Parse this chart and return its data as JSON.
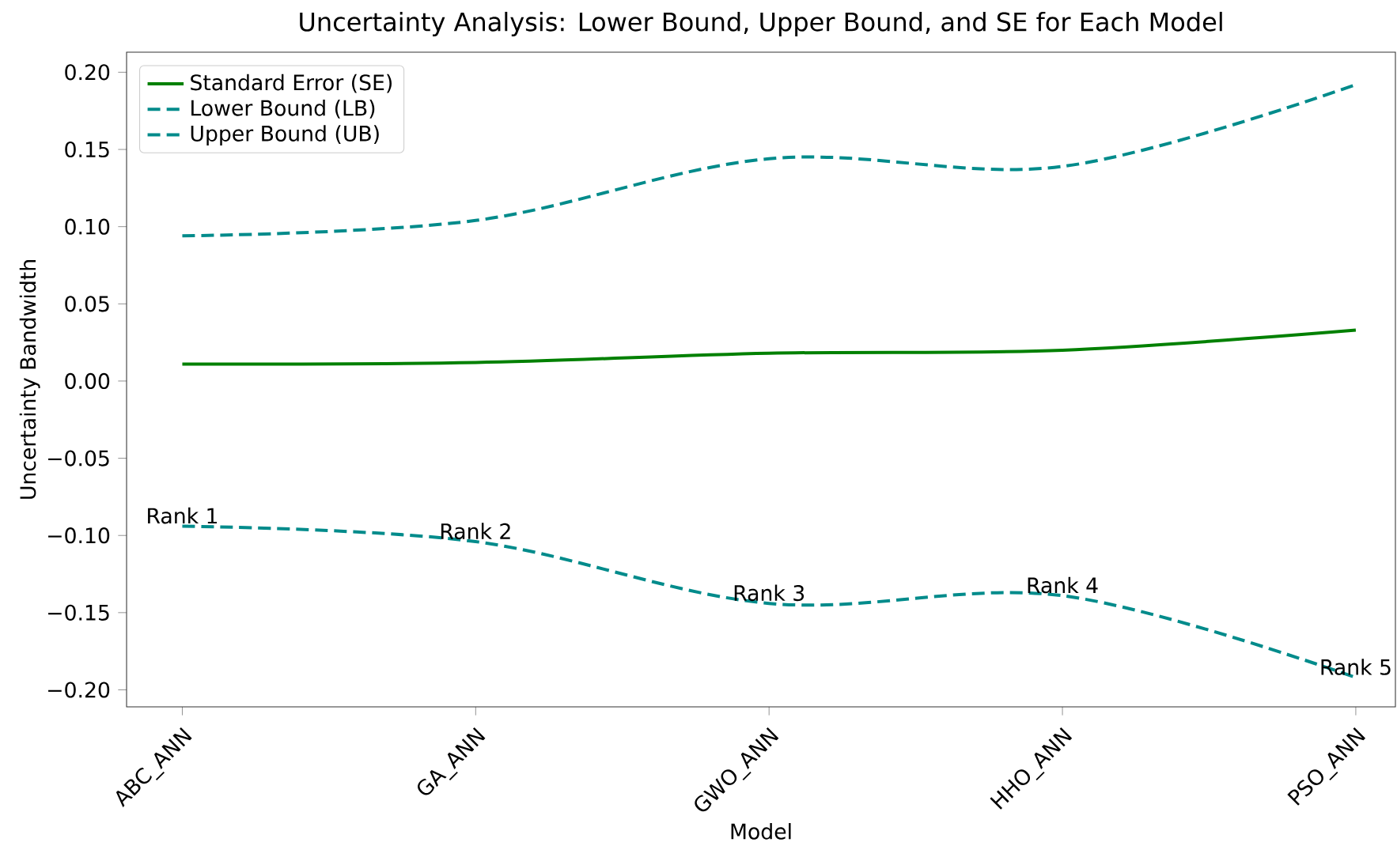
{
  "chart_data": {
    "type": "line",
    "title": "Uncertainty Analysis: Lower Bound, Upper Bound, and SE for Each Model",
    "xlabel": "Model",
    "ylabel": "Uncertainty Bandwidth",
    "categories": [
      "ABC_ANN",
      "GA_ANN",
      "GWO_ANN",
      "HHO_ANN",
      "PSO_ANN"
    ],
    "series": [
      {
        "name": "Standard Error (SE)",
        "color": "#008000",
        "line_style": "solid",
        "values": [
          0.011,
          0.012,
          0.018,
          0.02,
          0.033
        ]
      },
      {
        "name": "Lower Bound (LB)",
        "color": "#008b8b",
        "line_style": "dashed",
        "values": [
          -0.094,
          -0.104,
          -0.144,
          -0.139,
          -0.192
        ]
      },
      {
        "name": "Upper Bound (UB)",
        "color": "#008b8b",
        "line_style": "dashed",
        "values": [
          0.094,
          0.104,
          0.144,
          0.139,
          0.192
        ]
      }
    ],
    "ylim": [
      -0.211,
      0.213
    ],
    "yticks": [
      {
        "value": -0.2,
        "label": "−0.20"
      },
      {
        "value": -0.15,
        "label": "−0.15"
      },
      {
        "value": -0.1,
        "label": "−0.10"
      },
      {
        "value": -0.05,
        "label": "−0.05"
      },
      {
        "value": 0,
        "label": "0.00"
      },
      {
        "value": 0.05,
        "label": "0.05"
      },
      {
        "value": 0.1,
        "label": "0.10"
      },
      {
        "value": 0.15,
        "label": "0.15"
      },
      {
        "value": 0.2,
        "label": "0.20"
      }
    ],
    "legend": "top left",
    "annotations": [
      {
        "text": "Rank 1",
        "x": "ABC_ANN",
        "y": -0.094
      },
      {
        "text": "Rank 2",
        "x": "GA_ANN",
        "y": -0.104
      },
      {
        "text": "Rank 3",
        "x": "GWO_ANN",
        "y": -0.144
      },
      {
        "text": "Rank 4",
        "x": "HHO_ANN",
        "y": -0.139
      },
      {
        "text": "Rank 5",
        "x": "PSO_ANN",
        "y": -0.192
      }
    ]
  }
}
